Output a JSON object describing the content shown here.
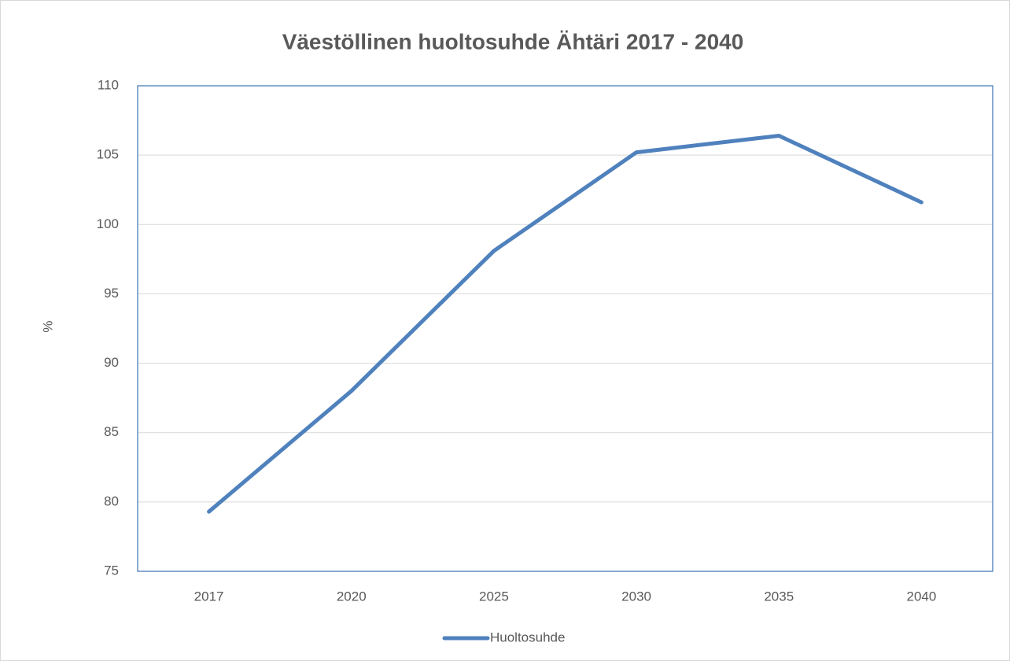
{
  "chart_data": {
    "type": "line",
    "title": "Väestöllinen huoltosuhde Ähtäri 2017 - 2040",
    "y_label": "%",
    "categories": [
      "2017",
      "2020",
      "2025",
      "2030",
      "2035",
      "2040"
    ],
    "series": [
      {
        "name": "Huoltosuhde",
        "color": "#4f81bd",
        "values": [
          79.3,
          88.0,
          98.1,
          105.2,
          106.4,
          101.6
        ]
      }
    ],
    "ylim": [
      75,
      110
    ],
    "yticks": [
      75,
      80,
      85,
      90,
      95,
      100,
      105,
      110
    ],
    "grid": true,
    "legend": "bottom"
  }
}
